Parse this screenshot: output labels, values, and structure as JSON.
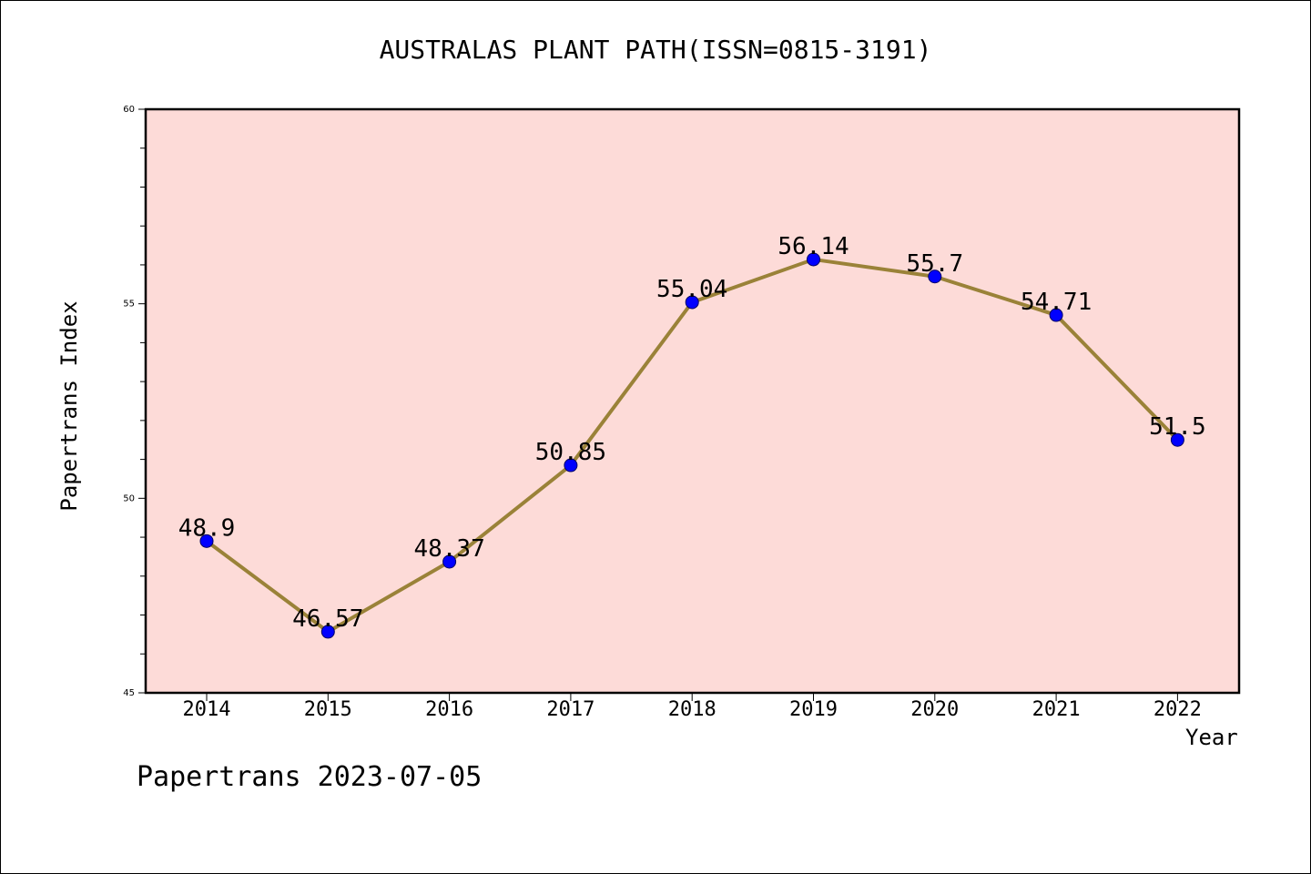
{
  "chart_data": {
    "type": "line",
    "title": "AUSTRALAS PLANT PATH(ISSN=0815-3191)",
    "xlabel": "Year",
    "ylabel": "Papertrans Index",
    "categories": [
      "2014",
      "2015",
      "2016",
      "2017",
      "2018",
      "2019",
      "2020",
      "2021",
      "2022"
    ],
    "series": [
      {
        "values": [
          48.9,
          46.57,
          48.37,
          50.85,
          55.04,
          56.14,
          55.7,
          54.71,
          51.5
        ],
        "labels": [
          "48.9",
          "46.57",
          "48.37",
          "50.85",
          "55.04",
          "56.14",
          "55.7",
          "54.71",
          "51.5"
        ]
      }
    ],
    "ylim": [
      45,
      60
    ],
    "yticks": [
      "45",
      "50",
      "55",
      "60"
    ],
    "grid": false,
    "legend": "none",
    "colors": {
      "plot_background": "#fddbd8",
      "line": "#9a8238",
      "marker": "#0000ff",
      "axis": "#000000"
    }
  },
  "footer": "Papertrans 2023-07-05"
}
